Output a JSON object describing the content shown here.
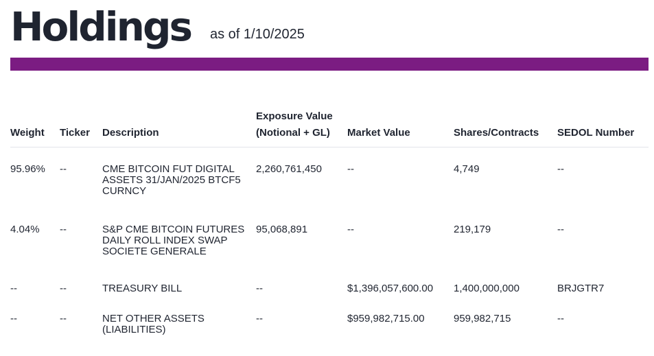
{
  "header": {
    "title": "Holdings",
    "as_of": "as of 1/10/2025",
    "accent_color": "#7b1c82"
  },
  "table": {
    "columns": [
      "Weight",
      "Ticker",
      "Description",
      "Exposure Value (Notional + GL)",
      "Market Value",
      "Shares/Contracts",
      "SEDOL Number"
    ],
    "rows": [
      [
        "95.96%",
        "--",
        "CME BITCOIN FUT DIGITAL ASSETS 31/JAN/2025 BTCF5 CURNCY",
        "2,260,761,450",
        "--",
        "4,749",
        "--"
      ],
      [
        "4.04%",
        "--",
        "S&P CME BITCOIN FUTURES DAILY ROLL INDEX SWAP SOCIETE GENERALE",
        "95,068,891",
        "--",
        "219,179",
        "--"
      ],
      [
        "--",
        "--",
        "TREASURY BILL",
        "--",
        "$1,396,057,600.00",
        "1,400,000,000",
        "BRJGTR7"
      ],
      [
        "--",
        "--",
        "NET OTHER ASSETS (LIABILITIES)",
        "--",
        "$959,982,715.00",
        "959,982,715",
        "--"
      ]
    ]
  }
}
